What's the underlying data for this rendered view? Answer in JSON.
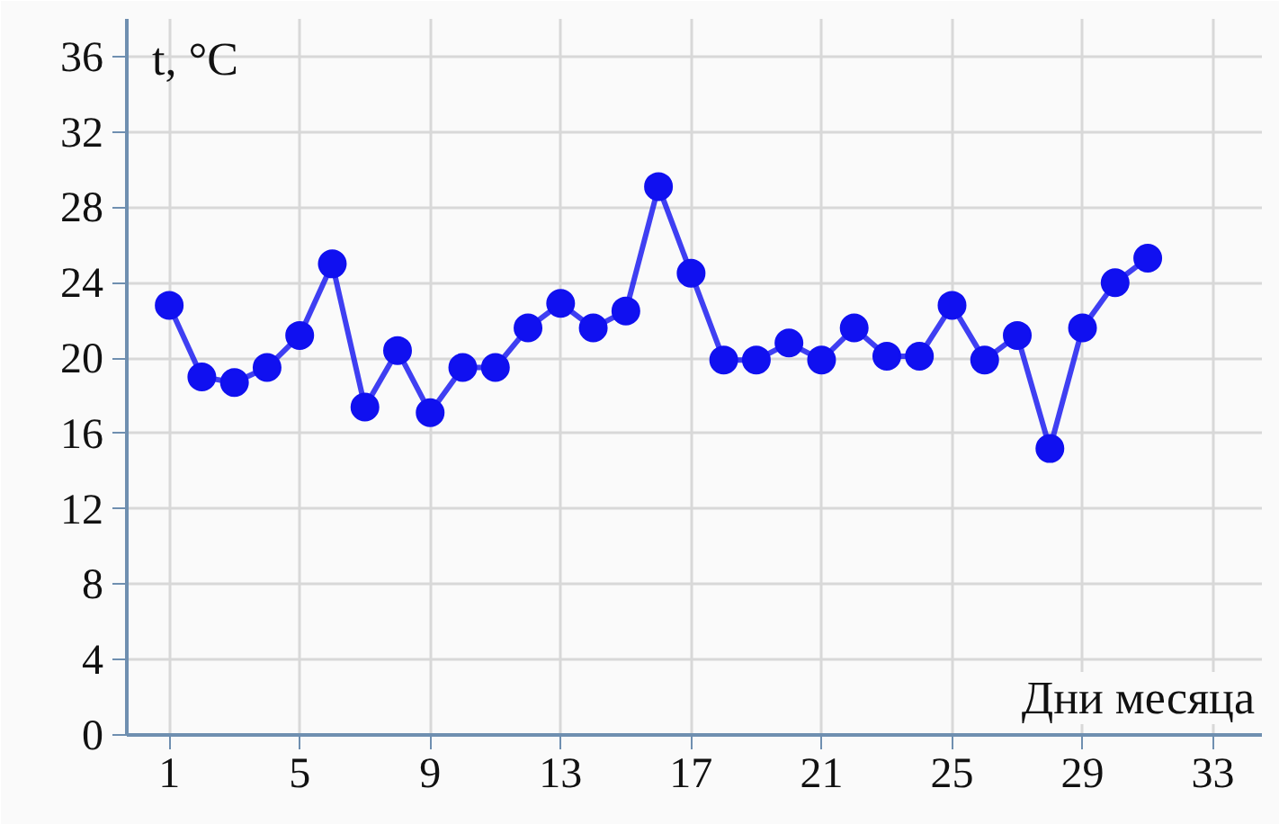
{
  "chart_data": {
    "type": "line",
    "xlabel": "Дни месяца",
    "ylabel": "t, °C",
    "x": [
      1,
      2,
      3,
      4,
      5,
      6,
      7,
      8,
      9,
      10,
      11,
      12,
      13,
      14,
      15,
      16,
      17,
      18,
      19,
      20,
      21,
      22,
      23,
      24,
      25,
      26,
      27,
      28,
      29,
      30,
      31
    ],
    "series": [
      {
        "color": "#1010f0",
        "values": [
          22.8,
          19.0,
          18.7,
          19.5,
          21.2,
          25.0,
          17.4,
          20.4,
          17.1,
          19.5,
          19.5,
          21.6,
          22.9,
          21.6,
          22.5,
          29.1,
          24.5,
          19.9,
          19.9,
          20.8,
          19.9,
          21.6,
          20.1,
          20.1,
          22.8,
          19.9,
          21.2,
          15.2,
          21.6,
          24.0,
          25.3
        ]
      }
    ],
    "xlim": [
      -0.3,
      34.5
    ],
    "ylim": [
      0,
      38
    ],
    "xticks": [
      1,
      5,
      9,
      13,
      17,
      21,
      25,
      29,
      33
    ],
    "yticks": [
      0,
      4,
      8,
      12,
      16,
      20,
      24,
      28,
      32,
      36
    ],
    "grid": true,
    "marker": "circle",
    "line_style": "solid"
  }
}
